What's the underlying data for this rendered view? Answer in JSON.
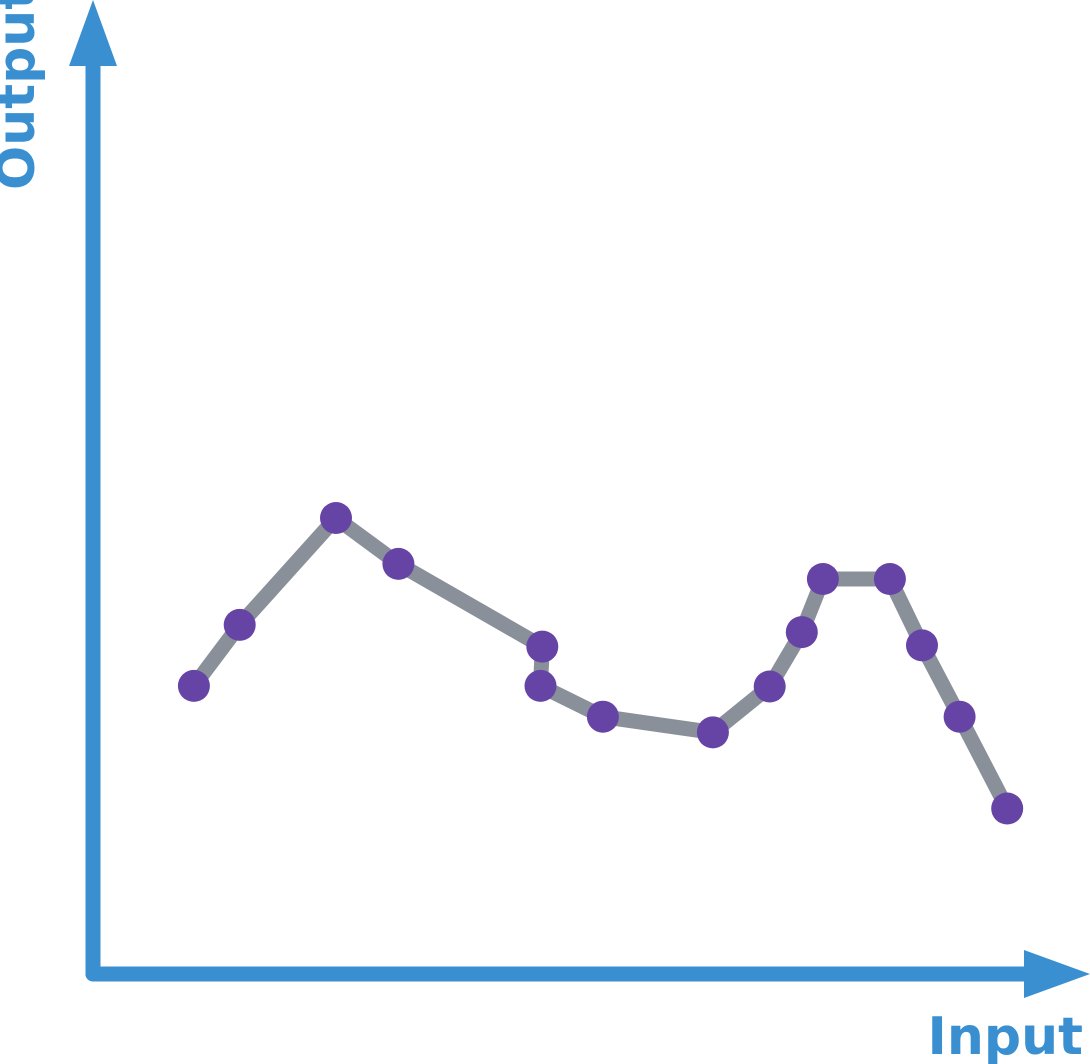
{
  "colors": {
    "axis": "#3a8fd0",
    "line": "#8a9099",
    "point": "#6644a6"
  },
  "chart_data": {
    "type": "line",
    "title": "",
    "xlabel": "Input",
    "ylabel": "Output",
    "xlim": [
      0,
      100
    ],
    "ylim": [
      0,
      100
    ],
    "grid": false,
    "legend": "none",
    "series": [
      {
        "x": [
          11,
          16,
          26.5,
          33.3,
          49,
          48.8,
          55.6,
          67.6,
          73.8,
          77.3,
          79.6,
          86.9,
          90.4,
          94.5,
          99.7
        ],
        "y": [
          47.7,
          57.8,
          75.5,
          67.9,
          54.2,
          47.7,
          42.6,
          40.0,
          47.6,
          56.6,
          65.4,
          65.4,
          54.4,
          42.6,
          27.4
        ]
      }
    ]
  }
}
